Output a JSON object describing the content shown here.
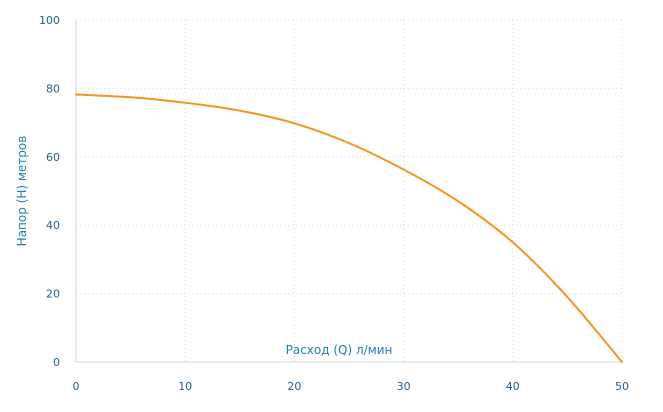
{
  "chart_data": {
    "type": "line",
    "title": "",
    "xlabel": "Расход (Q) л/мин",
    "ylabel": "Напор (H) метров",
    "xlim": [
      0,
      50
    ],
    "ylim": [
      0,
      100
    ],
    "x_ticks": [
      0,
      10,
      20,
      30,
      40,
      50
    ],
    "y_ticks": [
      0,
      20,
      40,
      60,
      80,
      100
    ],
    "grid": true,
    "legend": "none",
    "series": [
      {
        "color": "#f7941d",
        "x": [
          0,
          5,
          10,
          15,
          20,
          25,
          30,
          35,
          40,
          45,
          50
        ],
        "y": [
          78.2,
          77.4,
          75.8,
          73.5,
          69.8,
          64,
          56.3,
          47,
          35,
          19,
          0
        ]
      }
    ]
  }
}
